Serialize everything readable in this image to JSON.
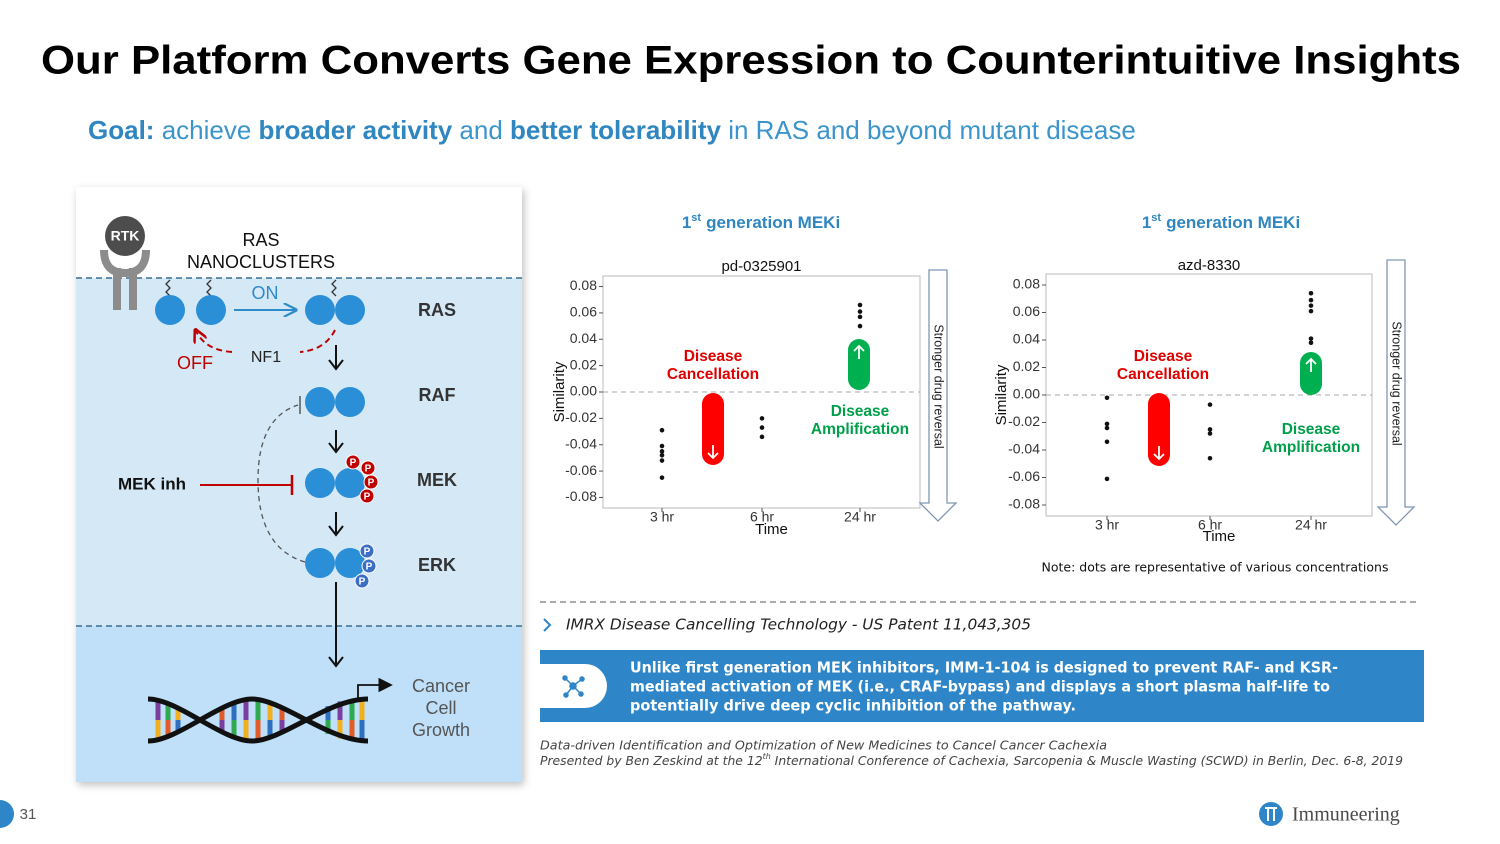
{
  "title": "Our Platform Converts Gene Expression to Counterintuitive Insights",
  "goal": {
    "label": "Goal:",
    "t1": "achieve",
    "b1": "broader activity",
    "t2": "and",
    "b2": "better tolerability",
    "t3": "in RAS and beyond mutant disease"
  },
  "diagram": {
    "rtk": "RTK",
    "nanoclusters": [
      "RAS",
      "NANOCLUSTERS"
    ],
    "on": "ON",
    "off": "OFF",
    "nf1": "NF1",
    "levels": [
      "RAS",
      "RAF",
      "MEK",
      "ERK"
    ],
    "inhibitor": "MEK inh",
    "phospho": "P",
    "outcome": [
      "Cancer",
      "Cell",
      "Growth"
    ]
  },
  "chart_data": [
    {
      "type": "scatter",
      "title": {
        "lead": "1",
        "sup": "st",
        "rest": "generation MEKi"
      },
      "subtitle": "pd-0325901",
      "ylabel": "Similarity",
      "xlabel": "Time",
      "categories": [
        "3 hr",
        "6 hr",
        "24 hr"
      ],
      "values": [
        [
          -0.029,
          -0.041,
          -0.045,
          -0.048,
          -0.052,
          -0.065
        ],
        [
          -0.02,
          -0.027,
          -0.034
        ],
        [
          0.066,
          0.061,
          0.057,
          0.05
        ]
      ],
      "color": "#111111",
      "ylim": [
        -0.088,
        0.088
      ],
      "yticks": [
        0.08,
        0.06,
        0.04,
        0.02,
        {
          "value": 0,
          "label": "0.00"
        },
        -0.02,
        -0.04,
        -0.06,
        -0.08
      ],
      "annotations": {
        "cancellation": [
          "Disease",
          "Cancellation"
        ],
        "amplification": [
          "Disease",
          "Amplification"
        ],
        "reversal": "Stronger drug reversal"
      }
    },
    {
      "type": "scatter",
      "title": {
        "lead": "1",
        "sup": "st",
        "rest": "generation MEKi"
      },
      "subtitle": "azd-8330",
      "ylabel": "Similarity",
      "xlabel": "Time",
      "categories": [
        "3 hr",
        "6 hr",
        "24 hr"
      ],
      "values": [
        [
          -0.002,
          -0.021,
          -0.024,
          -0.034,
          -0.061
        ],
        [
          -0.007,
          -0.025,
          -0.028,
          -0.046
        ],
        [
          0.074,
          0.069,
          0.065,
          0.061,
          0.041,
          0.038
        ]
      ],
      "color": "#111111",
      "ylim": [
        -0.088,
        0.088
      ],
      "yticks": [
        0.08,
        0.06,
        0.04,
        0.02,
        {
          "value": 0,
          "label": "0.00"
        },
        -0.02,
        -0.04,
        -0.06,
        -0.08
      ],
      "annotations": {
        "cancellation": [
          "Disease",
          "Cancellation"
        ],
        "amplification": [
          "Disease",
          "Amplification"
        ],
        "reversal": "Stronger drug reversal"
      }
    }
  ],
  "note": "Note: dots are representative of various concentrations",
  "patent": "IMRX Disease Cancelling Technology - US Patent 11,043,305",
  "callout": [
    "Unlike first generation MEK inhibitors, IMM-1-104 is designed to prevent RAF- and KSR-",
    "mediated activation of MEK (i.e., CRAF-bypass) and displays a short plasma half-life to",
    "potentially drive deep cyclic inhibition of the pathway."
  ],
  "citation": {
    "line1": "Data-driven Identification and Optimization of New Medicines to Cancel Cancer Cachexia",
    "line2": [
      "Presented by Ben Zeskind at the 12",
      "th",
      " International Conference of Cachexia, Sarcopenia & Muscle Wasting (SCWD) in Berlin, Dec. 6-8, 2019"
    ]
  },
  "page_number": 31,
  "logo": "Immuneering"
}
